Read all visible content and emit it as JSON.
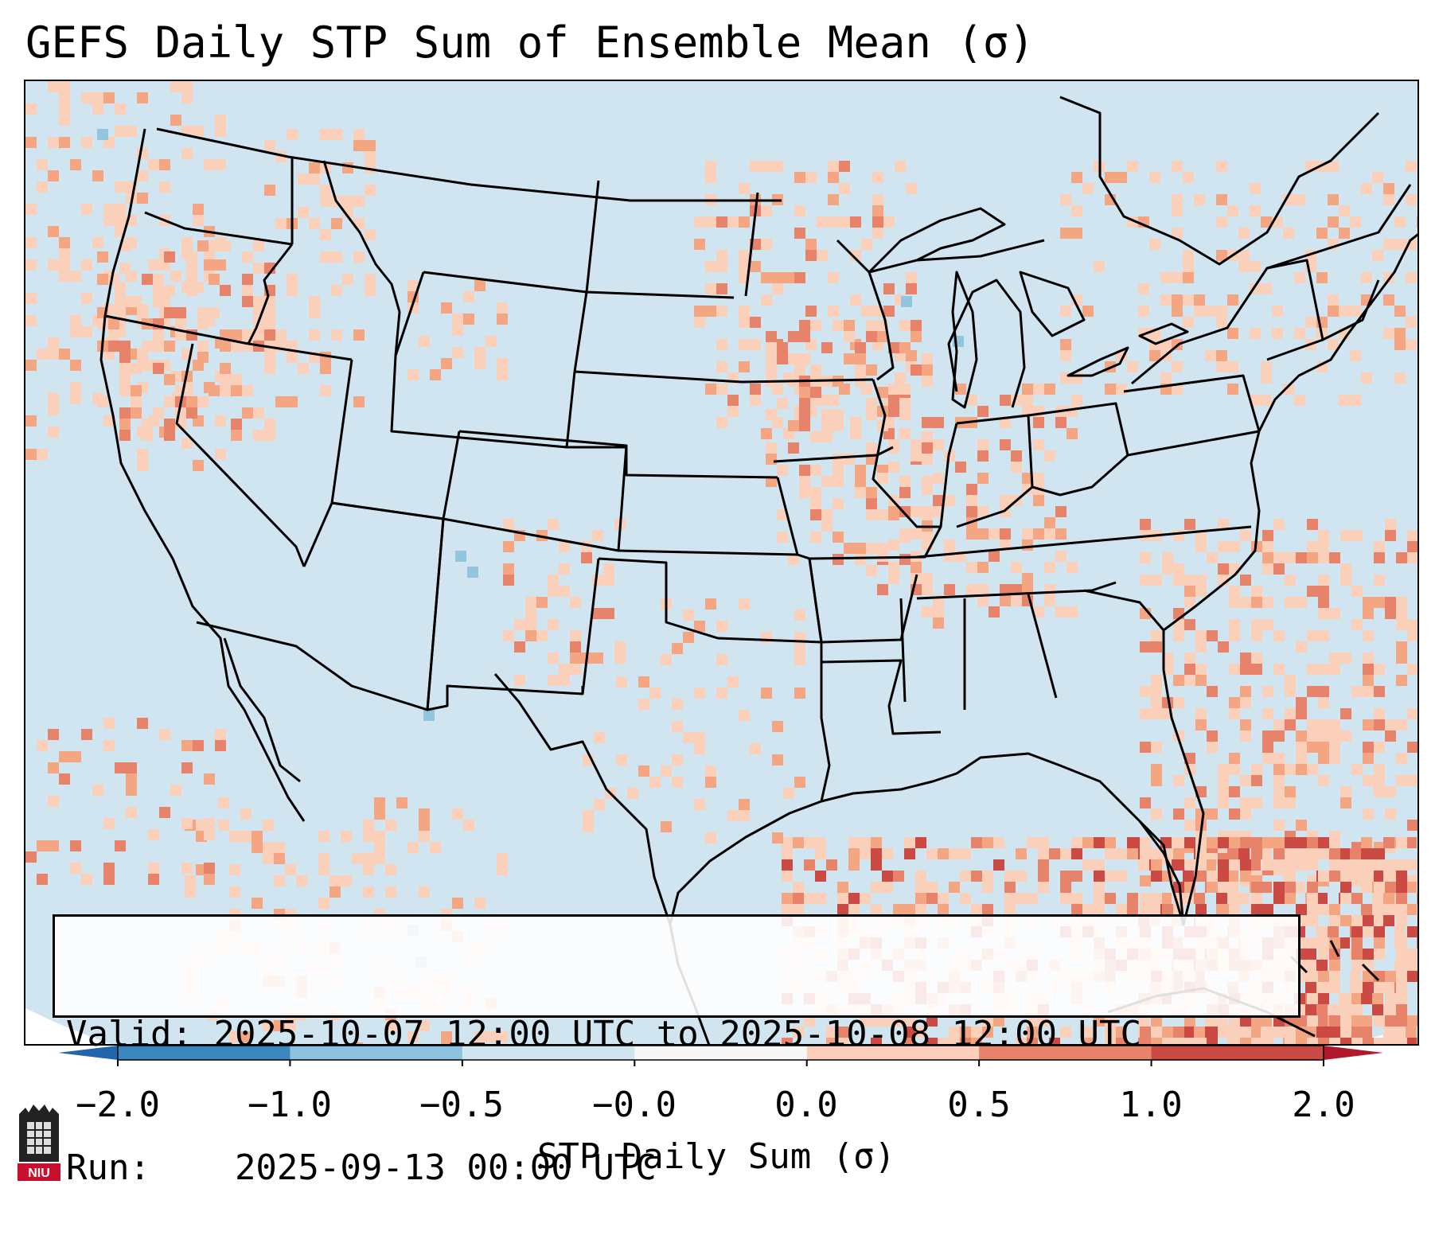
{
  "title": "GEFS Daily STP Sum of Ensemble Mean (σ)",
  "info": {
    "valid_label": "Valid:",
    "valid_value": "2025-10-07 12:00 UTC to 2025-10-08 12:00 UTC",
    "run_label": "Run:",
    "run_value": "2025-09-13 00:00 UTC"
  },
  "colorbar": {
    "label": "STP Daily Sum (σ)",
    "ticks": [
      "−2.0",
      "−1.0",
      "−0.5",
      "−0.0",
      "0.0",
      "0.5",
      "1.0",
      "2.0"
    ],
    "bin_colors": [
      "#3b88c0",
      "#8fc2de",
      "#d1e5f0",
      "#f7f7f7",
      "#fbd0bb",
      "#e7826b",
      "#cb4a43"
    ],
    "extend_min_color": "#2166ac",
    "extend_max_color": "#b2182b"
  },
  "map": {
    "projection": "Lambert Conformal (CONUS)",
    "background_color": "#d1e5f0",
    "border_color": "#000000"
  },
  "logo": {
    "text": "NIU"
  }
}
